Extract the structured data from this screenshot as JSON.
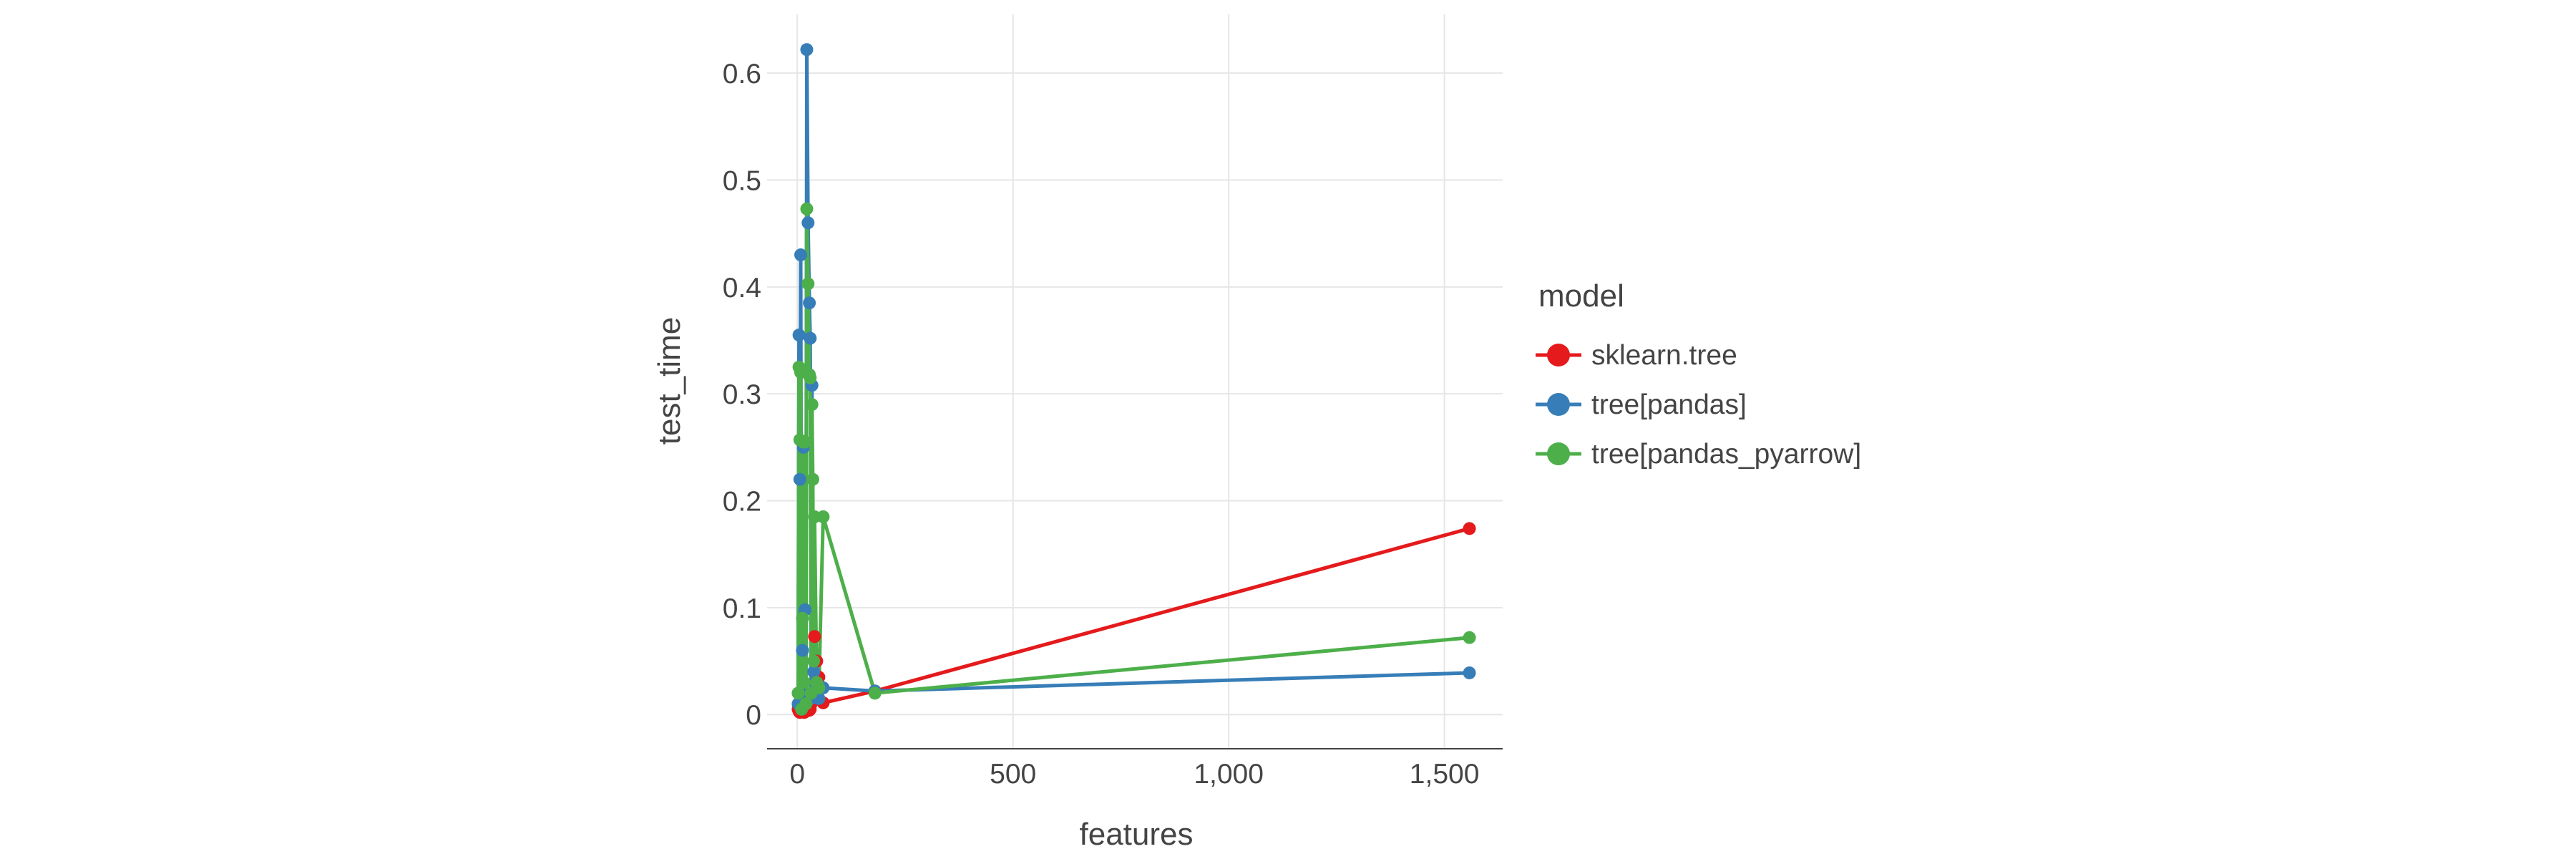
{
  "chart_data": {
    "type": "line",
    "xlabel": "features",
    "ylabel": "test_time",
    "xlim": [
      -70,
      1635
    ],
    "ylim": [
      -0.032,
      0.655
    ],
    "x_ticks": [
      0,
      500,
      1000,
      1500
    ],
    "x_tick_labels": [
      "0",
      "500",
      "1,000",
      "1,500"
    ],
    "y_ticks": [
      0,
      0.1,
      0.2,
      0.3,
      0.4,
      0.5,
      0.6
    ],
    "y_tick_labels": [
      "0",
      "0.1",
      "0.2",
      "0.3",
      "0.4",
      "0.5",
      "0.6"
    ],
    "grid": true,
    "legend": {
      "title": "model",
      "position": "right"
    },
    "series": [
      {
        "name": "sklearn.tree",
        "color": "#e41a1c",
        "x": [
          2,
          4,
          5,
          6,
          8,
          10,
          12,
          14,
          16,
          18,
          20,
          22,
          25,
          28,
          30,
          32,
          35,
          38,
          40,
          45,
          50,
          60,
          180,
          1558
        ],
        "y": [
          0.005,
          0.003,
          0.008,
          0.002,
          0.004,
          0.006,
          0.003,
          0.005,
          0.002,
          0.004,
          0.003,
          0.006,
          0.008,
          0.004,
          0.005,
          0.01,
          0.02,
          0.015,
          0.073,
          0.05,
          0.035,
          0.011,
          0.022,
          0.174
        ]
      },
      {
        "name": "tree[pandas]",
        "color": "#377eb8",
        "x": [
          2,
          4,
          6,
          8,
          10,
          12,
          14,
          16,
          18,
          20,
          22,
          25,
          28,
          30,
          32,
          34,
          36,
          38,
          40,
          45,
          50,
          60,
          180,
          1558
        ],
        "y": [
          0.01,
          0.355,
          0.22,
          0.43,
          0.005,
          0.06,
          0.25,
          0.02,
          0.098,
          0.01,
          0.622,
          0.46,
          0.385,
          0.352,
          0.015,
          0.308,
          0.02,
          0.04,
          0.03,
          0.02,
          0.015,
          0.025,
          0.022,
          0.039
        ]
      },
      {
        "name": "tree[pandas_pyarrow]",
        "color": "#4daf4a",
        "x": [
          2,
          4,
          6,
          8,
          10,
          12,
          14,
          16,
          18,
          20,
          22,
          25,
          28,
          30,
          32,
          34,
          36,
          38,
          40,
          45,
          50,
          60,
          180,
          1558
        ],
        "y": [
          0.02,
          0.325,
          0.257,
          0.32,
          0.005,
          0.09,
          0.255,
          0.03,
          0.255,
          0.01,
          0.473,
          0.403,
          0.318,
          0.315,
          0.02,
          0.29,
          0.22,
          0.05,
          0.185,
          0.03,
          0.025,
          0.185,
          0.02,
          0.072
        ]
      }
    ]
  }
}
